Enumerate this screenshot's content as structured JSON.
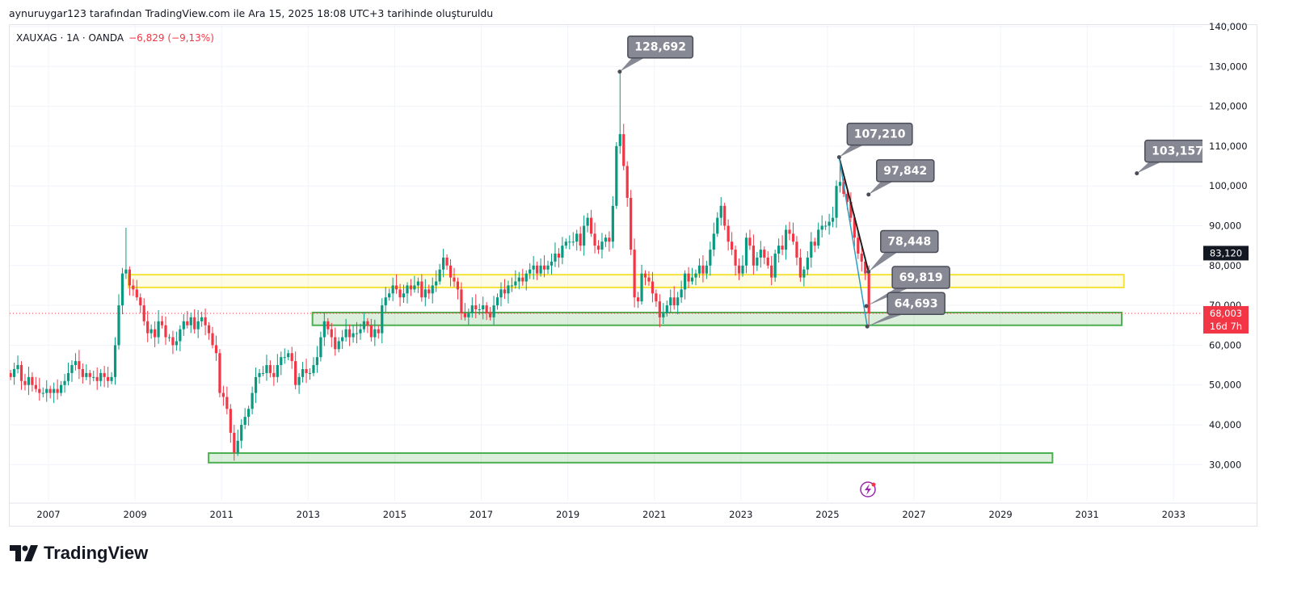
{
  "attribution": "aynuruygar123 tarafından TradingView.com ile Ara 15, 2025 18:08 UTC+3 tarihinde oluşturuldu",
  "legend": {
    "symbol": "XAUXAG · 1A · OANDA",
    "change": "−6,829 (−9,13%)"
  },
  "brand": "TradingView",
  "colors": {
    "up": "#089981",
    "down": "#f23645",
    "yellow_zone": "#f5e33a",
    "green_zone": "#4caf50",
    "callout": "#868993",
    "trend_black": "#222222",
    "trend_blue": "#2a9fbf"
  },
  "chart_data": {
    "type": "candlestick",
    "title": "XAUXAG · 1A · OANDA",
    "interval": "monthly",
    "start": "2006-02",
    "closes": [
      52,
      54,
      55,
      51,
      50,
      52,
      50,
      49,
      48,
      48,
      49,
      48,
      49,
      48,
      50,
      51,
      53,
      55,
      56,
      54,
      52,
      53,
      52,
      52,
      51,
      53,
      52,
      51,
      52,
      60,
      70,
      78,
      79,
      75,
      74,
      72,
      70,
      66,
      63,
      64,
      62,
      66,
      65,
      62,
      62,
      60,
      61,
      64,
      66,
      65,
      67,
      64,
      66,
      67,
      65,
      63,
      60,
      58,
      48,
      47,
      44,
      38,
      33,
      36,
      40,
      42,
      44,
      48,
      52,
      53,
      53,
      55,
      53,
      52,
      55,
      57,
      57,
      58,
      56,
      50,
      52,
      54,
      53,
      53,
      55,
      57,
      62,
      66,
      64,
      62,
      59,
      61,
      62,
      64,
      62,
      63,
      63,
      64,
      66,
      65,
      62,
      64,
      63,
      70,
      72,
      73,
      75,
      74,
      72,
      73,
      75,
      74,
      75,
      76,
      72,
      74,
      73,
      75,
      76,
      79,
      82,
      80,
      77,
      76,
      74,
      68,
      67,
      68,
      70,
      69,
      69,
      70,
      68,
      67,
      70,
      72,
      74,
      73,
      75,
      75,
      76,
      77,
      76,
      78,
      79,
      80,
      78,
      80,
      79,
      80,
      81,
      83,
      82,
      85,
      86,
      86,
      86,
      88,
      85,
      90,
      92,
      88,
      85,
      84,
      86,
      87,
      86,
      95,
      110,
      113,
      105,
      97,
      84,
      72,
      71,
      78,
      77,
      76,
      73,
      71,
      67,
      68,
      70,
      72,
      70,
      72,
      74,
      78,
      76,
      77,
      78,
      80,
      78,
      80,
      84,
      88,
      92,
      95,
      90,
      86,
      84,
      80,
      78,
      80,
      87,
      85,
      80,
      82,
      84,
      82,
      80,
      77,
      83,
      85,
      84,
      89,
      88,
      86,
      82,
      77,
      79,
      82,
      86,
      85,
      89,
      90,
      90,
      91,
      92,
      100,
      101,
      98,
      96,
      92,
      87,
      83,
      81,
      78,
      68.003
    ],
    "special_extremes": [
      {
        "month": "2008-10",
        "high": 89.5
      },
      {
        "month": "2011-04",
        "low": 31.0
      },
      {
        "month": "2020-03",
        "high": 128.692
      },
      {
        "month": "2025-04",
        "high": 107.21
      },
      {
        "month": "2025-12",
        "low": 64.693
      }
    ],
    "y_ticks": [
      {
        "value": 140,
        "label": "140,000"
      },
      {
        "value": 130,
        "label": "130,000"
      },
      {
        "value": 120,
        "label": "120,000"
      },
      {
        "value": 110,
        "label": "110,000"
      },
      {
        "value": 100,
        "label": "100,000"
      },
      {
        "value": 90,
        "label": "90,000"
      },
      {
        "value": 80,
        "label": "80,000"
      },
      {
        "value": 70,
        "label": "70,000"
      },
      {
        "value": 60,
        "label": "60,000"
      },
      {
        "value": 50,
        "label": "50,000"
      },
      {
        "value": 40,
        "label": "40,000"
      },
      {
        "value": 30,
        "label": "30,000"
      }
    ],
    "x_ticks": [
      "2007",
      "2009",
      "2011",
      "2013",
      "2015",
      "2017",
      "2019",
      "2021",
      "2023",
      "2025",
      "2027",
      "2029",
      "2031",
      "2033"
    ],
    "ylim": [
      20,
      140
    ],
    "xlim": [
      2006.1,
      2034.6
    ],
    "callouts": [
      {
        "label": "128,692",
        "year": 2020.2,
        "price": 128.692
      },
      {
        "label": "107,210",
        "year": 2025.27,
        "price": 107.21
      },
      {
        "label": "97,842",
        "year": 2025.95,
        "price": 97.842
      },
      {
        "label": "78,448",
        "year": 2025.95,
        "price": 78.448
      },
      {
        "label": "69,819",
        "year": 2025.9,
        "price": 69.819
      },
      {
        "label": "64,693",
        "year": 2025.92,
        "price": 64.693
      },
      {
        "label": "103,157",
        "year": 2032.15,
        "price": 103.157
      }
    ],
    "zones": [
      {
        "kind": "yellow",
        "from": 2008.85,
        "to": 2031.85,
        "low": 74.5,
        "high": 77.7
      },
      {
        "kind": "green",
        "from": 2013.1,
        "to": 2031.8,
        "low": 65.0,
        "high": 68.2
      },
      {
        "kind": "green",
        "from": 2010.7,
        "to": 2030.2,
        "low": 30.5,
        "high": 32.9
      }
    ],
    "trendlines": [
      {
        "kind": "black",
        "from": [
          2025.27,
          107.21
        ],
        "to": [
          2025.95,
          78.448
        ]
      },
      {
        "kind": "blue",
        "from": [
          2025.27,
          107.21
        ],
        "to": [
          2025.92,
          64.693
        ]
      }
    ],
    "price_labels": {
      "high_marker": {
        "value": 83.12,
        "label": "83,120"
      },
      "last": {
        "value": 68.003,
        "label": "68,003",
        "countdown": "16d 7h"
      }
    }
  }
}
